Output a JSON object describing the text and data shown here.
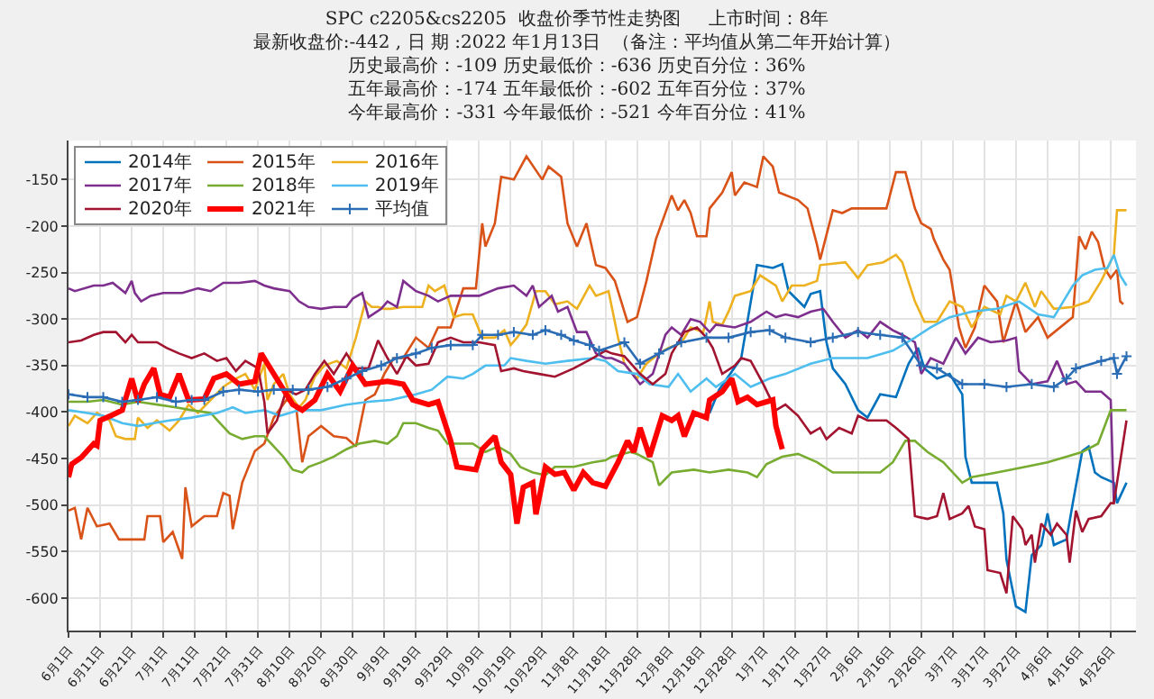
{
  "chart_data": {
    "type": "line",
    "title": "SPC c2205&cs2205  收盘价季节性走势图     上市时间：8年",
    "subtitle": "最新收盘价:-442 , 日 期 :2022 年1月13日  （备注：平均值从第二年开始计算）",
    "annotations": [
      "历史最高价：-109 历史最低价：-636 历史百分位：36%",
      "五年最高价：-174 五年最低价：-602 五年百分位：37%",
      "今年最高价：-331 今年最低价：-521 今年百分位：41%"
    ],
    "xlim": [
      "2019-06-01",
      "2020-05-04"
    ],
    "ylim": [
      -635,
      -108
    ],
    "yticks": [
      -600,
      -550,
      -500,
      -450,
      -400,
      -350,
      -300,
      -250,
      -200,
      -150
    ],
    "xticks": [
      {
        "value": "2019-06-01",
        "label": "6月1日"
      },
      {
        "value": "2019-06-11",
        "label": "6月11日"
      },
      {
        "value": "2019-06-21",
        "label": "6月21日"
      },
      {
        "value": "2019-07-01",
        "label": "7月1日"
      },
      {
        "value": "2019-07-11",
        "label": "7月11日"
      },
      {
        "value": "2019-07-21",
        "label": "7月21日"
      },
      {
        "value": "2019-07-31",
        "label": "7月31日"
      },
      {
        "value": "2019-08-10",
        "label": "8月10日"
      },
      {
        "value": "2019-08-20",
        "label": "8月20日"
      },
      {
        "value": "2019-08-30",
        "label": "8月30日"
      },
      {
        "value": "2019-09-09",
        "label": "9月9日"
      },
      {
        "value": "2019-09-19",
        "label": "9月19日"
      },
      {
        "value": "2019-09-29",
        "label": "9月29日"
      },
      {
        "value": "2019-10-09",
        "label": "10月9日"
      },
      {
        "value": "2019-10-19",
        "label": "10月19日"
      },
      {
        "value": "2019-10-29",
        "label": "10月29日"
      },
      {
        "value": "2019-11-08",
        "label": "11月8日"
      },
      {
        "value": "2019-11-18",
        "label": "11月18日"
      },
      {
        "value": "2019-11-28",
        "label": "11月28日"
      },
      {
        "value": "2019-12-08",
        "label": "12月8日"
      },
      {
        "value": "2019-12-18",
        "label": "12月18日"
      },
      {
        "value": "2019-12-28",
        "label": "12月28日"
      },
      {
        "value": "2020-01-07",
        "label": "1月7日"
      },
      {
        "value": "2020-01-17",
        "label": "1月17日"
      },
      {
        "value": "2020-01-27",
        "label": "1月27日"
      },
      {
        "value": "2020-02-06",
        "label": "2月6日"
      },
      {
        "value": "2020-02-16",
        "label": "2月16日"
      },
      {
        "value": "2020-02-26",
        "label": "2月26日"
      },
      {
        "value": "2020-03-07",
        "label": "3月7日"
      },
      {
        "value": "2020-03-17",
        "label": "3月17日"
      },
      {
        "value": "2020-03-27",
        "label": "3月27日"
      },
      {
        "value": "2020-04-06",
        "label": "4月6日"
      },
      {
        "value": "2020-04-16",
        "label": "4月16日"
      },
      {
        "value": "2020-04-26",
        "label": "4月26日"
      }
    ],
    "grid": true,
    "legend": "top left",
    "series": [
      {
        "name": "2014年",
        "color": "#0072bd",
        "x": [
          "2019-12-21",
          "2019-12-24",
          "2019-12-31",
          "2020-01-05",
          "2020-01-10",
          "2020-01-13",
          "2020-01-15",
          "2020-01-20",
          "2020-01-22",
          "2020-01-25",
          "2020-01-27",
          "2020-01-29",
          "2020-02-02",
          "2020-02-06",
          "2020-02-09",
          "2020-02-13",
          "2020-02-18",
          "2020-02-22",
          "2020-02-25",
          "2020-02-27",
          "2020-03-02",
          "2020-03-06",
          "2020-03-10",
          "2020-03-11",
          "2020-03-13",
          "2020-03-21",
          "2020-03-23",
          "2020-03-24",
          "2020-03-27",
          "2020-03-30",
          "2020-04-01",
          "2020-04-04",
          "2020-04-06",
          "2020-04-08",
          "2020-04-12",
          "2020-04-14",
          "2020-04-17",
          "2020-04-19",
          "2020-04-21",
          "2020-04-23",
          "2020-04-27",
          "2020-04-28",
          "2020-05-01"
        ],
        "values": [
          -401,
          -376,
          -342,
          -242,
          -245,
          -241,
          -270,
          -287,
          -273,
          -270,
          -325,
          -353,
          -370,
          -398,
          -406,
          -381,
          -384,
          -348,
          -331,
          -353,
          -364,
          -359,
          -381,
          -448,
          -476,
          -476,
          -509,
          -559,
          -609,
          -615,
          -554,
          -543,
          -509,
          -543,
          -537,
          -498,
          -442,
          -437,
          -465,
          -470,
          -476,
          -498,
          -476
        ]
      },
      {
        "name": "2015年",
        "color": "#d95319",
        "x": [
          "2019-06-01",
          "2019-06-03",
          "2019-06-05",
          "2019-06-07",
          "2019-06-10",
          "2019-06-14",
          "2019-06-17",
          "2019-06-25",
          "2019-06-26",
          "2019-06-30",
          "2019-07-01",
          "2019-07-04",
          "2019-07-07",
          "2019-07-08",
          "2019-07-10",
          "2019-07-14",
          "2019-07-18",
          "2019-07-20",
          "2019-07-22",
          "2019-07-23",
          "2019-07-26",
          "2019-07-30",
          "2019-08-02",
          "2019-08-05",
          "2019-08-09",
          "2019-08-12",
          "2019-08-14",
          "2019-08-16",
          "2019-08-20",
          "2019-08-24",
          "2019-08-28",
          "2019-08-31",
          "2019-09-03",
          "2019-09-06",
          "2019-09-09",
          "2019-09-12",
          "2019-09-15",
          "2019-09-19",
          "2019-09-23",
          "2019-09-26",
          "2019-09-30",
          "2019-10-04",
          "2019-10-08",
          "2019-10-10",
          "2019-10-11",
          "2019-10-14",
          "2019-10-16",
          "2019-10-20",
          "2019-10-24",
          "2019-10-29",
          "2019-10-31",
          "2019-11-04",
          "2019-11-06",
          "2019-11-09",
          "2019-11-12",
          "2019-11-15",
          "2019-11-18",
          "2019-11-21",
          "2019-11-25",
          "2019-11-28",
          "2019-12-01",
          "2019-12-04",
          "2019-12-09",
          "2019-12-11",
          "2019-12-13",
          "2019-12-15",
          "2019-12-17",
          "2019-12-20",
          "2019-12-21",
          "2019-12-25",
          "2019-12-28",
          "2019-12-29",
          "2020-01-01",
          "2020-01-05",
          "2020-01-07",
          "2020-01-10",
          "2020-01-12",
          "2020-01-18",
          "2020-01-21",
          "2020-01-24",
          "2020-01-25",
          "2020-01-29",
          "2020-02-01",
          "2020-02-04",
          "2020-02-15",
          "2020-02-18",
          "2020-02-21",
          "2020-02-24",
          "2020-02-26",
          "2020-02-29",
          "2020-03-01",
          "2020-03-04",
          "2020-03-06",
          "2020-03-09",
          "2020-03-11",
          "2020-03-14",
          "2020-03-17",
          "2020-03-21",
          "2020-03-23",
          "2020-03-27",
          "2020-03-30",
          "2020-04-03",
          "2020-04-06",
          "2020-04-14",
          "2020-04-16",
          "2020-04-18",
          "2020-04-20",
          "2020-04-22",
          "2020-04-24",
          "2020-04-26",
          "2020-04-28",
          "2020-04-29",
          "2020-04-30"
        ],
        "values": [
          -506,
          -503,
          -537,
          -503,
          -523,
          -520,
          -537,
          -537,
          -512,
          -512,
          -540,
          -529,
          -558,
          -481,
          -523,
          -512,
          -512,
          -487,
          -490,
          -526,
          -476,
          -442,
          -434,
          -406,
          -387,
          -392,
          -454,
          -426,
          -415,
          -426,
          -428,
          -437,
          -387,
          -381,
          -359,
          -342,
          -342,
          -320,
          -331,
          -309,
          -309,
          -267,
          -267,
          -197,
          -222,
          -197,
          -147,
          -150,
          -125,
          -150,
          -136,
          -147,
          -197,
          -222,
          -197,
          -242,
          -245,
          -259,
          -303,
          -298,
          -259,
          -214,
          -167,
          -183,
          -172,
          -186,
          -211,
          -211,
          -181,
          -164,
          -142,
          -167,
          -153,
          -158,
          -125,
          -136,
          -164,
          -172,
          -181,
          -220,
          -236,
          -183,
          -186,
          -181,
          -181,
          -142,
          -142,
          -181,
          -197,
          -203,
          -214,
          -236,
          -247,
          -309,
          -331,
          -309,
          -264,
          -281,
          -325,
          -281,
          -314,
          -298,
          -320,
          -298,
          -211,
          -225,
          -206,
          -217,
          -245,
          -256,
          -247,
          -281,
          -284
        ]
      },
      {
        "name": "2016年",
        "color": "#edb120",
        "x": [
          "2019-06-01",
          "2019-06-03",
          "2019-06-07",
          "2019-06-10",
          "2019-06-14",
          "2019-06-16",
          "2019-06-19",
          "2019-06-22",
          "2019-06-23",
          "2019-06-26",
          "2019-06-29",
          "2019-07-03",
          "2019-07-06",
          "2019-07-09",
          "2019-07-12",
          "2019-07-16",
          "2019-07-20",
          "2019-07-24",
          "2019-07-27",
          "2019-07-30",
          "2019-08-02",
          "2019-08-03",
          "2019-08-05",
          "2019-08-08",
          "2019-08-10",
          "2019-08-13",
          "2019-08-15",
          "2019-08-18",
          "2019-08-21",
          "2019-08-25",
          "2019-08-28",
          "2019-08-31",
          "2019-09-03",
          "2019-09-05",
          "2019-09-07",
          "2019-09-09",
          "2019-09-11",
          "2019-09-15",
          "2019-09-21",
          "2019-09-23",
          "2019-09-25",
          "2019-09-28",
          "2019-10-01",
          "2019-10-04",
          "2019-10-07",
          "2019-10-10",
          "2019-10-14",
          "2019-10-17",
          "2019-10-19",
          "2019-10-21",
          "2019-10-24",
          "2019-10-27",
          "2019-10-30",
          "2019-11-02",
          "2019-11-06",
          "2019-11-09",
          "2019-11-13",
          "2019-11-15",
          "2019-11-19",
          "2019-11-22",
          "2019-11-24",
          "2019-11-28",
          "2019-12-01",
          "2019-12-05",
          "2019-12-08",
          "2019-12-12",
          "2019-12-15",
          "2019-12-19",
          "2019-12-21",
          "2019-12-22",
          "2019-12-25",
          "2019-12-27",
          "2019-12-29",
          "2020-01-03",
          "2020-01-06",
          "2020-01-11",
          "2020-01-13",
          "2020-01-16",
          "2020-01-20",
          "2020-01-24",
          "2020-01-25",
          "2020-02-02",
          "2020-02-06",
          "2020-02-09",
          "2020-02-14",
          "2020-02-18",
          "2020-02-20",
          "2020-02-24",
          "2020-02-27",
          "2020-03-02",
          "2020-03-06",
          "2020-03-10",
          "2020-03-13",
          "2020-03-17",
          "2020-03-22",
          "2020-03-24",
          "2020-03-27",
          "2020-03-30",
          "2020-04-02",
          "2020-04-04",
          "2020-04-08",
          "2020-04-14",
          "2020-04-19",
          "2020-04-23",
          "2020-04-27",
          "2020-04-28",
          "2020-05-01"
        ],
        "values": [
          -415,
          -404,
          -412,
          -401,
          -409,
          -426,
          -429,
          -429,
          -406,
          -417,
          -409,
          -420,
          -409,
          -392,
          -401,
          -387,
          -373,
          -364,
          -359,
          -376,
          -348,
          -387,
          -370,
          -359,
          -381,
          -395,
          -387,
          -362,
          -350,
          -345,
          -353,
          -320,
          -281,
          -287,
          -287,
          -289,
          -289,
          -287,
          -287,
          -264,
          -270,
          -264,
          -298,
          -295,
          -295,
          -320,
          -320,
          -312,
          -328,
          -320,
          -306,
          -270,
          -270,
          -284,
          -281,
          -289,
          -264,
          -275,
          -270,
          -320,
          -348,
          -364,
          -348,
          -337,
          -331,
          -326,
          -309,
          -314,
          -281,
          -303,
          -306,
          -292,
          -275,
          -270,
          -253,
          -264,
          -281,
          -264,
          -264,
          -259,
          -242,
          -239,
          -256,
          -242,
          -239,
          -231,
          -239,
          -281,
          -303,
          -303,
          -281,
          -287,
          -309,
          -287,
          -295,
          -275,
          -281,
          -261,
          -287,
          -270,
          -289,
          -287,
          -281,
          -259,
          -231,
          -183,
          -183
        ]
      },
      {
        "name": "2017年",
        "color": "#7e2f8e",
        "x": [
          "2019-06-01",
          "2019-06-03",
          "2019-06-09",
          "2019-06-12",
          "2019-06-15",
          "2019-06-19",
          "2019-06-21",
          "2019-06-22",
          "2019-06-24",
          "2019-06-27",
          "2019-07-01",
          "2019-07-07",
          "2019-07-12",
          "2019-07-16",
          "2019-07-20",
          "2019-07-25",
          "2019-07-30",
          "2019-08-02",
          "2019-08-05",
          "2019-08-10",
          "2019-08-13",
          "2019-08-16",
          "2019-08-20",
          "2019-08-24",
          "2019-08-28",
          "2019-08-30",
          "2019-09-02",
          "2019-09-04",
          "2019-09-08",
          "2019-09-10",
          "2019-09-13",
          "2019-09-15",
          "2019-09-19",
          "2019-09-23",
          "2019-09-26",
          "2019-09-30",
          "2019-10-04",
          "2019-10-09",
          "2019-10-15",
          "2019-10-20",
          "2019-10-24",
          "2019-10-26",
          "2019-10-28",
          "2019-11-01",
          "2019-11-03",
          "2019-11-06",
          "2019-11-09",
          "2019-11-12",
          "2019-11-15",
          "2019-11-18",
          "2019-11-20",
          "2019-11-24",
          "2019-11-29",
          "2019-12-03",
          "2019-12-07",
          "2019-12-09",
          "2019-12-12",
          "2019-12-15",
          "2019-12-18",
          "2019-12-21",
          "2019-12-23",
          "2019-12-29",
          "2020-01-03",
          "2020-01-08",
          "2020-01-11",
          "2020-01-14",
          "2020-01-18",
          "2020-01-22",
          "2020-01-26",
          "2020-01-29",
          "2020-02-02",
          "2020-02-06",
          "2020-02-09",
          "2020-02-13",
          "2020-02-17",
          "2020-02-20",
          "2020-02-24",
          "2020-02-26",
          "2020-02-29",
          "2020-03-04",
          "2020-03-08",
          "2020-03-11",
          "2020-03-15",
          "2020-03-19",
          "2020-03-24",
          "2020-03-27",
          "2020-03-28",
          "2020-04-01",
          "2020-04-06",
          "2020-04-09",
          "2020-04-12",
          "2020-04-15",
          "2020-04-18",
          "2020-04-23",
          "2020-04-26",
          "2020-04-27"
        ],
        "values": [
          -267,
          -270,
          -264,
          -264,
          -261,
          -272,
          -259,
          -272,
          -281,
          -275,
          -272,
          -272,
          -267,
          -270,
          -261,
          -261,
          -259,
          -264,
          -267,
          -270,
          -281,
          -287,
          -289,
          -287,
          -287,
          -278,
          -272,
          -298,
          -289,
          -281,
          -287,
          -259,
          -270,
          -275,
          -281,
          -275,
          -275,
          -275,
          -267,
          -264,
          -275,
          -264,
          -287,
          -275,
          -292,
          -287,
          -314,
          -314,
          -337,
          -342,
          -342,
          -348,
          -370,
          -359,
          -317,
          -309,
          -317,
          -300,
          -303,
          -314,
          -306,
          -309,
          -303,
          -292,
          -298,
          -295,
          -298,
          -292,
          -289,
          -303,
          -320,
          -312,
          -320,
          -303,
          -312,
          -317,
          -325,
          -359,
          -342,
          -348,
          -320,
          -337,
          -320,
          -325,
          -323,
          -320,
          -356,
          -370,
          -367,
          -345,
          -370,
          -367,
          -378,
          -378,
          -387,
          -498
        ]
      },
      {
        "name": "2018年",
        "color": "#77ac30",
        "x": [
          "2019-06-01",
          "2019-06-07",
          "2019-06-12",
          "2019-06-18",
          "2019-06-23",
          "2019-06-29",
          "2019-07-05",
          "2019-07-10",
          "2019-07-16",
          "2019-07-19",
          "2019-07-22",
          "2019-07-26",
          "2019-07-30",
          "2019-08-02",
          "2019-08-05",
          "2019-08-08",
          "2019-08-11",
          "2019-08-14",
          "2019-08-16",
          "2019-08-20",
          "2019-08-24",
          "2019-08-28",
          "2019-09-01",
          "2019-09-06",
          "2019-09-10",
          "2019-09-13",
          "2019-09-15",
          "2019-09-19",
          "2019-09-23",
          "2019-09-26",
          "2019-09-29",
          "2019-10-07",
          "2019-10-11",
          "2019-10-15",
          "2019-10-19",
          "2019-10-22",
          "2019-10-26",
          "2019-10-30",
          "2019-11-02",
          "2019-11-08",
          "2019-11-14",
          "2019-11-18",
          "2019-11-20",
          "2019-11-26",
          "2019-11-28",
          "2019-12-03",
          "2019-12-05",
          "2019-12-09",
          "2019-12-16",
          "2019-12-21",
          "2019-12-27",
          "2020-01-02",
          "2020-01-05",
          "2020-01-08",
          "2020-01-13",
          "2020-01-18",
          "2020-01-24",
          "2020-01-29",
          "2020-02-06",
          "2020-02-13",
          "2020-02-17",
          "2020-02-21",
          "2020-02-24",
          "2020-02-28",
          "2020-03-04",
          "2020-03-10",
          "2020-03-13",
          "2020-03-21",
          "2020-03-30",
          "2020-04-06",
          "2020-04-12",
          "2020-04-17",
          "2020-04-22",
          "2020-04-26",
          "2020-05-01"
        ],
        "values": [
          -389,
          -389,
          -387,
          -392,
          -389,
          -392,
          -395,
          -398,
          -401,
          -412,
          -423,
          -429,
          -426,
          -426,
          -437,
          -448,
          -462,
          -465,
          -459,
          -454,
          -448,
          -440,
          -434,
          -431,
          -434,
          -426,
          -412,
          -412,
          -417,
          -420,
          -434,
          -434,
          -443,
          -437,
          -445,
          -459,
          -465,
          -468,
          -459,
          -459,
          -454,
          -452,
          -448,
          -443,
          -445,
          -454,
          -479,
          -465,
          -462,
          -465,
          -462,
          -465,
          -470,
          -456,
          -448,
          -445,
          -454,
          -465,
          -465,
          -465,
          -454,
          -431,
          -431,
          -443,
          -454,
          -476,
          -470,
          -465,
          -459,
          -454,
          -448,
          -443,
          -434,
          -398,
          -398
        ]
      },
      {
        "name": "2019年",
        "color": "#4dbeee",
        "x": [
          "2019-06-01",
          "2019-06-07",
          "2019-06-12",
          "2019-06-18",
          "2019-06-23",
          "2019-06-28",
          "2019-07-03",
          "2019-07-10",
          "2019-07-18",
          "2019-07-23",
          "2019-07-27",
          "2019-08-02",
          "2019-08-07",
          "2019-08-13",
          "2019-08-20",
          "2019-08-28",
          "2019-09-04",
          "2019-09-11",
          "2019-09-19",
          "2019-09-24",
          "2019-09-29",
          "2019-10-04",
          "2019-10-07",
          "2019-10-11",
          "2019-10-17",
          "2019-10-19",
          "2019-10-24",
          "2019-10-30",
          "2019-11-06",
          "2019-11-14",
          "2019-11-18",
          "2019-11-22",
          "2019-11-28",
          "2019-12-02",
          "2019-12-08",
          "2019-12-11",
          "2019-12-15",
          "2019-12-20",
          "2019-12-23",
          "2019-12-29",
          "2020-01-03",
          "2020-01-09",
          "2020-01-14",
          "2020-01-22",
          "2020-01-29",
          "2020-02-09",
          "2020-02-17",
          "2020-02-24",
          "2020-02-29",
          "2020-03-06",
          "2020-03-13",
          "2020-03-21",
          "2020-03-28",
          "2020-04-03",
          "2020-04-08",
          "2020-04-14",
          "2020-04-17",
          "2020-04-21",
          "2020-04-25",
          "2020-04-27",
          "2020-04-29",
          "2020-05-01"
        ],
        "values": [
          -398,
          -401,
          -404,
          -412,
          -415,
          -412,
          -409,
          -406,
          -401,
          -395,
          -401,
          -398,
          -404,
          -398,
          -398,
          -392,
          -389,
          -387,
          -381,
          -376,
          -362,
          -364,
          -359,
          -350,
          -350,
          -342,
          -345,
          -348,
          -345,
          -342,
          -345,
          -356,
          -359,
          -370,
          -373,
          -359,
          -378,
          -364,
          -373,
          -359,
          -373,
          -364,
          -359,
          -348,
          -342,
          -342,
          -334,
          -320,
          -309,
          -298,
          -292,
          -289,
          -281,
          -295,
          -298,
          -264,
          -253,
          -247,
          -245,
          -231,
          -253,
          -264
        ]
      },
      {
        "name": "2020年",
        "color": "#a2142f",
        "x": [
          "2019-06-01",
          "2019-06-05",
          "2019-06-09",
          "2019-06-12",
          "2019-06-16",
          "2019-06-19",
          "2019-06-21",
          "2019-06-23",
          "2019-06-29",
          "2019-07-02",
          "2019-07-06",
          "2019-07-10",
          "2019-07-14",
          "2019-07-18",
          "2019-07-21",
          "2019-07-24",
          "2019-07-27",
          "2019-07-31",
          "2019-08-02",
          "2019-08-03",
          "2019-08-06",
          "2019-08-09",
          "2019-08-12",
          "2019-08-15",
          "2019-08-18",
          "2019-08-21",
          "2019-08-24",
          "2019-08-28",
          "2019-08-31",
          "2019-09-04",
          "2019-09-07",
          "2019-09-10",
          "2019-09-13",
          "2019-09-16",
          "2019-09-19",
          "2019-09-23",
          "2019-09-26",
          "2019-09-30",
          "2019-10-04",
          "2019-10-09",
          "2019-10-14",
          "2019-10-16",
          "2019-10-20",
          "2019-10-23",
          "2019-10-28",
          "2019-11-02",
          "2019-11-08",
          "2019-11-14",
          "2019-11-18",
          "2019-11-20",
          "2019-11-24",
          "2019-11-29",
          "2019-12-03",
          "2019-12-07",
          "2019-12-09",
          "2019-12-13",
          "2019-12-17",
          "2019-12-20",
          "2019-12-22",
          "2019-12-25",
          "2019-12-29",
          "2019-12-31",
          "2020-01-03",
          "2020-01-07",
          "2020-01-11",
          "2020-01-14",
          "2020-01-18",
          "2020-01-22",
          "2020-01-25",
          "2020-01-27",
          "2020-01-31",
          "2020-02-04",
          "2020-02-06",
          "2020-02-09",
          "2020-02-15",
          "2020-02-18",
          "2020-02-22",
          "2020-02-24",
          "2020-02-28",
          "2020-03-02",
          "2020-03-04",
          "2020-03-06",
          "2020-03-10",
          "2020-03-12",
          "2020-03-14",
          "2020-03-17",
          "2020-03-18",
          "2020-03-22",
          "2020-03-24",
          "2020-03-26",
          "2020-03-29",
          "2020-03-30",
          "2020-04-01",
          "2020-04-02",
          "2020-04-04",
          "2020-04-07",
          "2020-04-09",
          "2020-04-12",
          "2020-04-13",
          "2020-04-15",
          "2020-04-17",
          "2020-04-19",
          "2020-04-23",
          "2020-04-26",
          "2020-04-27",
          "2020-05-01"
        ],
        "values": [
          -325,
          -323,
          -317,
          -314,
          -314,
          -325,
          -317,
          -325,
          -325,
          -331,
          -337,
          -342,
          -337,
          -345,
          -342,
          -356,
          -345,
          -353,
          -389,
          -423,
          -409,
          -376,
          -381,
          -376,
          -359,
          -345,
          -359,
          -337,
          -353,
          -353,
          -323,
          -342,
          -359,
          -340,
          -350,
          -348,
          -325,
          -320,
          -325,
          -325,
          -328,
          -356,
          -353,
          -356,
          -359,
          -362,
          -353,
          -342,
          -334,
          -337,
          -340,
          -359,
          -370,
          -359,
          -337,
          -314,
          -309,
          -320,
          -331,
          -359,
          -350,
          -342,
          -345,
          -370,
          -398,
          -392,
          -404,
          -423,
          -417,
          -429,
          -417,
          -423,
          -404,
          -409,
          -409,
          -417,
          -429,
          -512,
          -515,
          -512,
          -487,
          -515,
          -509,
          -501,
          -523,
          -526,
          -570,
          -573,
          -595,
          -512,
          -526,
          -543,
          -532,
          -562,
          -520,
          -532,
          -520,
          -532,
          -562,
          -506,
          -529,
          -515,
          -512,
          -498,
          -498,
          -409
        ]
      },
      {
        "name": "2021年",
        "color": "#ff0000",
        "x": [
          "2019-06-01",
          "2019-06-02",
          "2019-06-05",
          "2019-06-09",
          "2019-06-10",
          "2019-06-11",
          "2019-06-15",
          "2019-06-18",
          "2019-06-21",
          "2019-06-23",
          "2019-06-25",
          "2019-06-28",
          "2019-06-30",
          "2019-07-03",
          "2019-07-06",
          "2019-07-09",
          "2019-07-14",
          "2019-07-17",
          "2019-07-21",
          "2019-07-25",
          "2019-07-30",
          "2019-08-01",
          "2019-08-03",
          "2019-08-07",
          "2019-08-11",
          "2019-08-14",
          "2019-08-18",
          "2019-08-22",
          "2019-08-26",
          "2019-08-30",
          "2019-09-03",
          "2019-09-10",
          "2019-09-15",
          "2019-09-18",
          "2019-09-23",
          "2019-09-26",
          "2019-09-30",
          "2019-10-02",
          "2019-10-08",
          "2019-10-10",
          "2019-10-14",
          "2019-10-16",
          "2019-10-19",
          "2019-10-21",
          "2019-10-23",
          "2019-10-26",
          "2019-10-27",
          "2019-10-30",
          "2019-11-02",
          "2019-11-05",
          "2019-11-08",
          "2019-11-11",
          "2019-11-14",
          "2019-11-18",
          "2019-11-22",
          "2019-11-25",
          "2019-11-27",
          "2019-11-29",
          "2019-12-02",
          "2019-12-06",
          "2019-12-09",
          "2019-12-11",
          "2019-12-13",
          "2019-12-16",
          "2019-12-20",
          "2019-12-21",
          "2019-12-25",
          "2019-12-28",
          "2019-12-30",
          "2020-01-02",
          "2020-01-05",
          "2020-01-10",
          "2020-01-11",
          "2020-01-13"
        ],
        "values": [
          -470,
          -456,
          -449,
          -434,
          -436,
          -409,
          -403,
          -398,
          -364,
          -389,
          -370,
          -353,
          -381,
          -384,
          -359,
          -387,
          -386,
          -364,
          -359,
          -370,
          -367,
          -337,
          -348,
          -370,
          -392,
          -398,
          -387,
          -359,
          -378,
          -350,
          -370,
          -367,
          -370,
          -387,
          -392,
          -389,
          -431,
          -459,
          -462,
          -440,
          -426,
          -454,
          -467,
          -520,
          -481,
          -476,
          -510,
          -459,
          -467,
          -465,
          -484,
          -465,
          -476,
          -480,
          -454,
          -431,
          -443,
          -417,
          -448,
          -404,
          -409,
          -404,
          -426,
          -401,
          -406,
          -387,
          -378,
          -364,
          -389,
          -384,
          -392,
          -387,
          -415,
          -440
        ]
      },
      {
        "name": "平均值",
        "color": "#2a6db5",
        "marker": "cross",
        "x": [
          "2019-06-01",
          "2019-06-07",
          "2019-06-12",
          "2019-06-18",
          "2019-06-23",
          "2019-06-29",
          "2019-07-05",
          "2019-07-10",
          "2019-07-14",
          "2019-07-20",
          "2019-07-25",
          "2019-07-31",
          "2019-08-05",
          "2019-08-11",
          "2019-08-16",
          "2019-08-22",
          "2019-08-28",
          "2019-09-02",
          "2019-09-08",
          "2019-09-13",
          "2019-09-19",
          "2019-09-24",
          "2019-09-30",
          "2019-10-07",
          "2019-10-10",
          "2019-10-15",
          "2019-10-20",
          "2019-10-26",
          "2019-10-30",
          "2019-11-04",
          "2019-11-08",
          "2019-11-13",
          "2019-11-16",
          "2019-11-24",
          "2019-11-29",
          "2019-12-05",
          "2019-12-12",
          "2019-12-20",
          "2019-12-27",
          "2020-01-03",
          "2020-01-09",
          "2020-01-14",
          "2020-01-22",
          "2020-01-29",
          "2020-02-06",
          "2020-02-13",
          "2020-02-20",
          "2020-02-26",
          "2020-03-02",
          "2020-03-10",
          "2020-03-17",
          "2020-03-24",
          "2020-04-01",
          "2020-04-08",
          "2020-04-12",
          "2020-04-15",
          "2020-04-23",
          "2020-04-27",
          "2020-04-28",
          "2020-05-01"
        ],
        "values": [
          -381,
          -384,
          -384,
          -389,
          -387,
          -384,
          -389,
          -387,
          -387,
          -378,
          -376,
          -378,
          -376,
          -376,
          -376,
          -373,
          -364,
          -356,
          -350,
          -342,
          -337,
          -331,
          -328,
          -328,
          -317,
          -317,
          -314,
          -317,
          -312,
          -317,
          -323,
          -328,
          -334,
          -325,
          -348,
          -337,
          -325,
          -320,
          -320,
          -314,
          -312,
          -320,
          -325,
          -320,
          -314,
          -317,
          -320,
          -350,
          -353,
          -370,
          -370,
          -373,
          -370,
          -373,
          -364,
          -353,
          -345,
          -342,
          -359,
          -340
        ]
      }
    ]
  }
}
